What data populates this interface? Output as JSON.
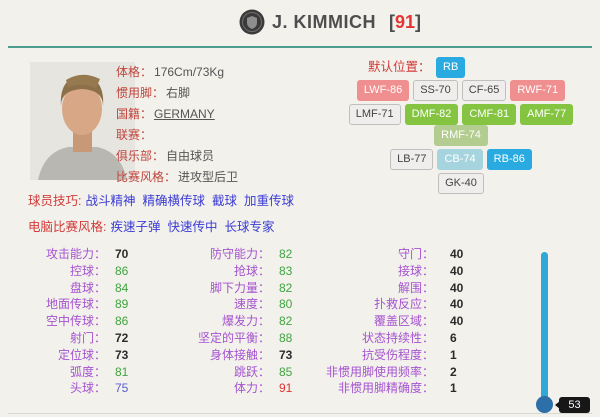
{
  "header": {
    "name": "J. KIMMICH",
    "rating_prefix": "[",
    "rating": "91",
    "rating_suffix": "]"
  },
  "info": {
    "rows": [
      {
        "label": "体格：",
        "value": "176Cm/73Kg",
        "link": false
      },
      {
        "label": "惯用脚：",
        "value": "右脚",
        "link": false
      },
      {
        "label": "国籍：",
        "value": "GERMANY",
        "link": true
      },
      {
        "label": "联赛：",
        "value": "",
        "link": false
      },
      {
        "label": "俱乐部：",
        "value": "自由球员",
        "link": false
      },
      {
        "label": "比赛风格：",
        "value": "进攻型后卫",
        "link": false
      }
    ]
  },
  "positions": {
    "default_label": "默认位置：",
    "default_position": {
      "text": "RB",
      "type": "blue"
    },
    "rows": [
      [
        {
          "text": "LWF-86",
          "type": "pink"
        },
        {
          "text": "SS-70",
          "type": "gray"
        },
        {
          "text": "CF-65",
          "type": "gray"
        },
        {
          "text": "RWF-71",
          "type": "pink"
        }
      ],
      [
        {
          "text": "LMF-71",
          "type": "gray"
        },
        {
          "text": "DMF-82",
          "type": "green"
        },
        {
          "text": "CMF-81",
          "type": "green"
        },
        {
          "text": "AMF-77",
          "type": "green"
        },
        {
          "text": "RMF-74",
          "type": "olive"
        }
      ],
      [
        {
          "text": "LB-77",
          "type": "gray"
        },
        {
          "text": "CB-74",
          "type": "lightblue"
        },
        {
          "text": "RB-86",
          "type": "blue"
        }
      ],
      [
        {
          "text": "GK-40",
          "type": "gray"
        }
      ]
    ]
  },
  "skills": {
    "label": "球员技巧:",
    "items": [
      "战斗精神",
      "精确横传球",
      "截球",
      "加重传球"
    ]
  },
  "com_styles": {
    "label": "电脑比赛风格:",
    "items": [
      "疾速子弹",
      "快速传中",
      "长球专家"
    ]
  },
  "stats": {
    "columns": [
      {
        "rows": [
          {
            "label": "攻击能力：",
            "value": "70",
            "tier": "dark"
          },
          {
            "label": "控球：",
            "value": "86",
            "tier": "green"
          },
          {
            "label": "盘球：",
            "value": "84",
            "tier": "green"
          },
          {
            "label": "地面传球：",
            "value": "89",
            "tier": "green"
          },
          {
            "label": "空中传球：",
            "value": "86",
            "tier": "green"
          },
          {
            "label": "射门：",
            "value": "72",
            "tier": "dark"
          },
          {
            "label": "定位球：",
            "value": "73",
            "tier": "dark"
          },
          {
            "label": "弧度：",
            "value": "81",
            "tier": "green"
          },
          {
            "label": "头球：",
            "value": "75",
            "tier": "blue"
          }
        ]
      },
      {
        "rows": [
          {
            "label": "防守能力：",
            "value": "82",
            "tier": "green"
          },
          {
            "label": "抢球：",
            "value": "83",
            "tier": "green"
          },
          {
            "label": "脚下力量：",
            "value": "82",
            "tier": "green"
          },
          {
            "label": "速度：",
            "value": "80",
            "tier": "green"
          },
          {
            "label": "爆发力：",
            "value": "82",
            "tier": "green"
          },
          {
            "label": "坚定的平衡：",
            "value": "88",
            "tier": "green"
          },
          {
            "label": "身体接触：",
            "value": "73",
            "tier": "dark"
          },
          {
            "label": "跳跃：",
            "value": "85",
            "tier": "green"
          },
          {
            "label": "体力：",
            "value": "91",
            "tier": "red"
          }
        ]
      },
      {
        "rows": [
          {
            "label": "守门：",
            "value": "40",
            "tier": "dark"
          },
          {
            "label": "接球：",
            "value": "40",
            "tier": "dark"
          },
          {
            "label": "解围：",
            "value": "40",
            "tier": "dark"
          },
          {
            "label": "扑救反应：",
            "value": "40",
            "tier": "dark"
          },
          {
            "label": "覆盖区域：",
            "value": "40",
            "tier": "dark"
          },
          {
            "label": "状态持续性：",
            "value": "6",
            "tier": "dark"
          },
          {
            "label": "抗受伤程度：",
            "value": "1",
            "tier": "dark"
          },
          {
            "label": "非惯用脚使用频率：",
            "value": "2",
            "tier": "dark"
          },
          {
            "label": "非惯用脚精确度：",
            "value": "1",
            "tier": "dark"
          }
        ]
      }
    ]
  },
  "slider": {
    "value": "53"
  },
  "colors": {
    "accent_teal": "#4D9E8F",
    "rating_red": "#E63333",
    "label_red": "#C0443C",
    "link_blue": "#3B3BD6",
    "stat_label_purple": "#A653D1",
    "stat_green": "#3FA43F",
    "stat_blue": "#5B5BD6",
    "stat_red": "#E03030",
    "badge_blue": "#29ABE2",
    "badge_pink": "#F08F8F",
    "badge_green": "#85C440",
    "badge_olive": "#B3CC8F",
    "badge_lightblue": "#A6D4DE",
    "slider_track": "#2FA8D5",
    "slider_handle": "#2D6FA8"
  }
}
